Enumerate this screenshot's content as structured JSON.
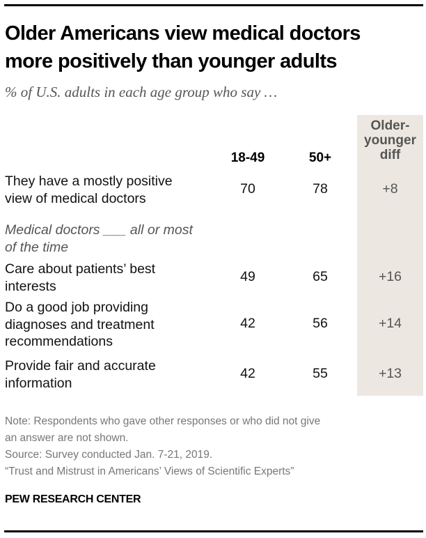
{
  "chart_data": {
    "type": "table",
    "title": "Older Americans view medical doctors more positively than younger adults",
    "subtitle": "% of U.S. adults in each age group who say ...",
    "columns": [
      "18-49",
      "50+",
      "Older-younger diff"
    ],
    "section_label": "Medical doctors ___ all or most of the time",
    "rows": [
      {
        "label": "They have a mostly positive view of medical doctors",
        "values": [
          "70",
          "78",
          "+8"
        ]
      },
      {
        "label": "Care about patients’ best interests",
        "values": [
          "49",
          "65",
          "+16"
        ]
      },
      {
        "label": "Do a good job providing diagnoses and treatment recommendations",
        "values": [
          "42",
          "56",
          "+14"
        ]
      },
      {
        "label": "Provide fair and accurate information",
        "values": [
          "42",
          "55",
          "+13"
        ]
      }
    ],
    "colors": {
      "diff_column_bg": "#ece8e1",
      "diff_text": "#555555"
    }
  },
  "header": {
    "title_line1": "Older Americans view medical doctors",
    "title_line2": "more positively than younger adults",
    "subtitle": "% of U.S. adults in each age group who say …"
  },
  "columns": {
    "c1": "18-49",
    "c2": "50+",
    "diff_l1": "Older-",
    "diff_l2": "younger",
    "diff_l3": "diff"
  },
  "rows": [
    {
      "l1": "They have a mostly positive",
      "l2": "view of medical doctors",
      "v1": "70",
      "v2": "78",
      "d": "+8"
    },
    {
      "l1": "Care about patients’ best",
      "l2": "interests",
      "v1": "49",
      "v2": "65",
      "d": "+16"
    },
    {
      "l1": "Do a good job providing",
      "l2": "diagnoses and treatment",
      "l3": "recommendations",
      "v1": "42",
      "v2": "56",
      "d": "+14"
    },
    {
      "l1": "Provide fair and accurate",
      "l2": "information",
      "v1": "42",
      "v2": "55",
      "d": "+13"
    }
  ],
  "section": {
    "l1": "Medical doctors ___ all or most",
    "l2": "of the time"
  },
  "footer": {
    "note_l1": "Note: Respondents who gave other responses or who did not give",
    "note_l2": "an answer are not shown.",
    "source": "Source: Survey conducted Jan. 7-21, 2019.",
    "report": "“Trust and Mistrust in Americans’ Views of Scientific Experts”",
    "brand": "PEW RESEARCH CENTER"
  }
}
